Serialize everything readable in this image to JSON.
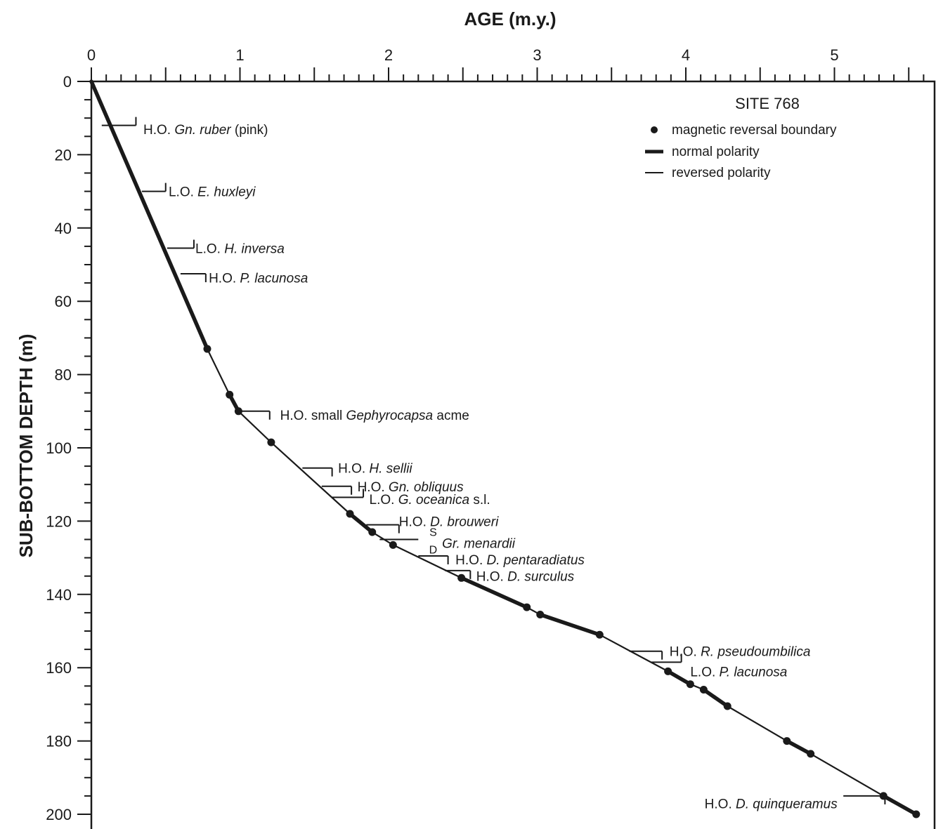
{
  "chart_data": {
    "type": "line",
    "title": "",
    "xlabel": "AGE (m.y.)",
    "ylabel": "SUB-BOTTOM DEPTH (m)",
    "xlim": [
      0,
      5.6
    ],
    "ylim": [
      200,
      0
    ],
    "x_ticks": [
      {
        "value": 0,
        "label": "0"
      },
      {
        "value": 1,
        "label": "1"
      },
      {
        "value": 2,
        "label": "2"
      },
      {
        "value": 3,
        "label": "3"
      },
      {
        "value": 4,
        "label": "4"
      },
      {
        "value": 5,
        "label": "5"
      }
    ],
    "y_ticks": [
      {
        "value": 0,
        "label": "0"
      },
      {
        "value": 20,
        "label": "20"
      },
      {
        "value": 40,
        "label": "40"
      },
      {
        "value": 60,
        "label": "60"
      },
      {
        "value": 80,
        "label": "80"
      },
      {
        "value": 100,
        "label": "100"
      },
      {
        "value": 120,
        "label": "120"
      },
      {
        "value": 140,
        "label": "140"
      },
      {
        "value": 160,
        "label": "160"
      },
      {
        "value": 180,
        "label": "180"
      },
      {
        "value": 200,
        "label": "200"
      }
    ],
    "legend": {
      "title": "SITE 768",
      "placement": "top-right",
      "items": [
        {
          "symbol": "dot",
          "label": "magnetic reversal boundary"
        },
        {
          "symbol": "thick-line",
          "label": "normal polarity"
        },
        {
          "symbol": "thin-line",
          "label": "reversed polarity"
        }
      ]
    },
    "series": [
      {
        "points": [
          {
            "x": 0,
            "y": 0,
            "marker": false
          },
          {
            "x": 0.78,
            "y": 73,
            "marker": true
          },
          {
            "x": 0.93,
            "y": 85.5,
            "marker": true
          },
          {
            "x": 0.99,
            "y": 90,
            "marker": true
          },
          {
            "x": 1.21,
            "y": 98.5,
            "marker": true
          },
          {
            "x": 1.74,
            "y": 118,
            "marker": true
          },
          {
            "x": 1.89,
            "y": 123,
            "marker": true
          },
          {
            "x": 2.03,
            "y": 126.5,
            "marker": true
          },
          {
            "x": 2.49,
            "y": 135.5,
            "marker": true
          },
          {
            "x": 2.93,
            "y": 143.5,
            "marker": true
          },
          {
            "x": 3.02,
            "y": 145.5,
            "marker": true
          },
          {
            "x": 3.42,
            "y": 151,
            "marker": true
          },
          {
            "x": 3.88,
            "y": 161,
            "marker": true
          },
          {
            "x": 4.03,
            "y": 164.5,
            "marker": true
          },
          {
            "x": 4.12,
            "y": 166,
            "marker": true
          },
          {
            "x": 4.28,
            "y": 170.5,
            "marker": true
          },
          {
            "x": 4.68,
            "y": 180,
            "marker": true
          },
          {
            "x": 4.84,
            "y": 183.5,
            "marker": true
          },
          {
            "x": 5.33,
            "y": 195,
            "marker": true
          },
          {
            "x": 5.55,
            "y": 200,
            "marker": true
          }
        ],
        "segments": [
          {
            "from": 0,
            "to": 0.78,
            "polarity": "normal"
          },
          {
            "from": 0.78,
            "to": 0.93,
            "polarity": "reversed"
          },
          {
            "from": 0.93,
            "to": 0.99,
            "polarity": "normal"
          },
          {
            "from": 0.99,
            "to": 1.74,
            "polarity": "reversed"
          },
          {
            "from": 1.74,
            "to": 1.89,
            "polarity": "normal"
          },
          {
            "from": 1.89,
            "to": 2.49,
            "polarity": "reversed"
          },
          {
            "from": 2.49,
            "to": 2.93,
            "polarity": "normal"
          },
          {
            "from": 2.93,
            "to": 3.02,
            "polarity": "reversed"
          },
          {
            "from": 3.02,
            "to": 3.42,
            "polarity": "normal"
          },
          {
            "from": 3.42,
            "to": 3.88,
            "polarity": "reversed"
          },
          {
            "from": 3.88,
            "to": 4.03,
            "polarity": "normal"
          },
          {
            "from": 4.03,
            "to": 4.12,
            "polarity": "reversed"
          },
          {
            "from": 4.12,
            "to": 4.28,
            "polarity": "normal"
          },
          {
            "from": 4.28,
            "to": 4.68,
            "polarity": "reversed"
          },
          {
            "from": 4.68,
            "to": 4.84,
            "polarity": "normal"
          },
          {
            "from": 4.84,
            "to": 5.33,
            "polarity": "reversed"
          },
          {
            "from": 5.33,
            "to": 5.55,
            "polarity": "normal"
          }
        ]
      }
    ],
    "events": [
      {
        "parts": [
          [
            "H.O. ",
            false
          ],
          [
            "Gn. ruber",
            true
          ],
          [
            " (pink)",
            false
          ]
        ],
        "depth": 12,
        "age_start": 0.07,
        "age_end": 0.3,
        "side": "up",
        "label_x": 0.35,
        "label_y": 13
      },
      {
        "parts": [
          [
            "L.O. ",
            false
          ],
          [
            "E. huxleyi",
            true
          ]
        ],
        "depth": 30,
        "age_start": 0.34,
        "age_end": 0.5,
        "side": "up",
        "label_x": 0.52,
        "label_y": 30
      },
      {
        "parts": [
          [
            "L.O. ",
            false
          ],
          [
            "H. inversa",
            true
          ]
        ],
        "depth": 45.5,
        "age_start": 0.51,
        "age_end": 0.69,
        "side": "up",
        "label_x": 0.7,
        "label_y": 45.5
      },
      {
        "parts": [
          [
            "H.O. ",
            false
          ],
          [
            "P. lacunosa",
            true
          ]
        ],
        "depth": 52.5,
        "age_start": 0.6,
        "age_end": 0.77,
        "side": "down",
        "label_x": 0.79,
        "label_y": 53.5
      },
      {
        "parts": [
          [
            "H.O. small ",
            false
          ],
          [
            "Gephyrocapsa",
            true
          ],
          [
            " acme",
            false
          ]
        ],
        "depth": 90,
        "age_start": 0.99,
        "age_end": 1.2,
        "side": "down",
        "label_x": 1.27,
        "label_y": 91
      },
      {
        "parts": [
          [
            "H.O. ",
            false
          ],
          [
            "H. sellii",
            true
          ]
        ],
        "depth": 105.5,
        "age_start": 1.42,
        "age_end": 1.62,
        "side": "down",
        "label_x": 1.66,
        "label_y": 105.5
      },
      {
        "parts": [
          [
            "H.O. ",
            false
          ],
          [
            "Gn. obliquus",
            true
          ]
        ],
        "depth": 110.5,
        "age_start": 1.55,
        "age_end": 1.75,
        "side": "down",
        "label_x": 1.79,
        "label_y": 110.5
      },
      {
        "parts": [
          [
            "L.O. ",
            false
          ],
          [
            "G. oceanica",
            true
          ],
          [
            " s.l.",
            false
          ]
        ],
        "depth": 113.5,
        "age_start": 1.62,
        "age_end": 1.83,
        "side": "up",
        "label_x": 1.87,
        "label_y": 114
      },
      {
        "parts": [
          [
            "H.O. ",
            false
          ],
          [
            "D. brouweri",
            true
          ]
        ],
        "depth": 121,
        "age_start": 1.85,
        "age_end": 2.07,
        "side": "down",
        "label_x": 2.07,
        "label_y": 120
      },
      {
        "parts": [
          [
            "Gr. menardii",
            true
          ]
        ],
        "depth": 125,
        "age_start": 1.94,
        "age_end": 2.2,
        "side": "none",
        "label_x": 2.36,
        "label_y": 126,
        "fraction": [
          "S",
          "D"
        ],
        "fraction_x": 2.3
      },
      {
        "parts": [
          [
            "H.O. ",
            false
          ],
          [
            "D. pentaradiatus",
            true
          ]
        ],
        "depth": 129.5,
        "age_start": 2.2,
        "age_end": 2.4,
        "side": "down",
        "label_x": 2.45,
        "label_y": 130.5
      },
      {
        "parts": [
          [
            "H.O. ",
            false
          ],
          [
            "D. surculus",
            true
          ]
        ],
        "depth": 133.5,
        "age_start": 2.38,
        "age_end": 2.55,
        "side": "down",
        "label_x": 2.59,
        "label_y": 135
      },
      {
        "parts": [
          [
            "H.O. ",
            false
          ],
          [
            "R. pseudoumbilica",
            true
          ]
        ],
        "depth": 155.5,
        "age_start": 3.62,
        "age_end": 3.84,
        "side": "down",
        "label_x": 3.89,
        "label_y": 155.5
      },
      {
        "parts": [
          [
            "L.O. ",
            false
          ],
          [
            "P. lacunosa",
            true
          ]
        ],
        "depth": 158.5,
        "age_start": 3.77,
        "age_end": 3.97,
        "side": "up",
        "label_x": 4.03,
        "label_y": 161
      },
      {
        "parts": [
          [
            "H.O. ",
            false
          ],
          [
            "D. quinqueramus",
            true
          ]
        ],
        "depth": 195,
        "age_start": 5.06,
        "age_end": 5.34,
        "side": "down",
        "anchor": "end",
        "label_x": 5.02,
        "label_y": 197
      }
    ]
  }
}
